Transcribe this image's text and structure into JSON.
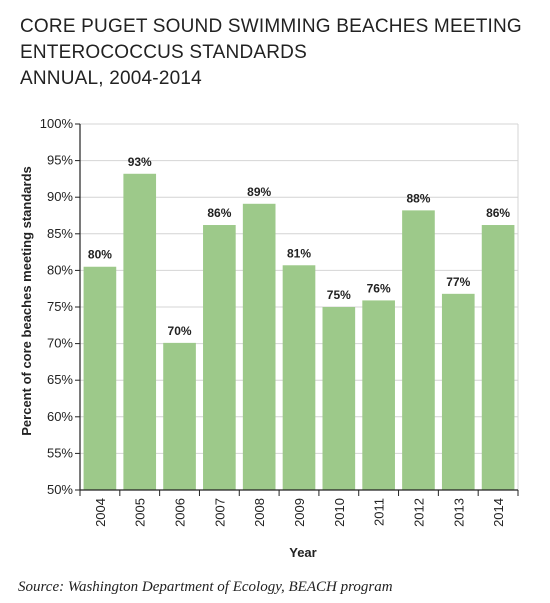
{
  "title_lines": [
    "CORE PUGET SOUND SWIMMING BEACHES MEETING",
    "ENTEROCOCCUS STANDARDS",
    "ANNUAL, 2004-2014"
  ],
  "source": "Source: Washington Department of Ecology, BEACH program",
  "colors": {
    "bar": "#9dc98a",
    "grid": "#d4d4d4",
    "axis": "#222222",
    "text": "#222222"
  },
  "chart_data": {
    "type": "bar",
    "title": "CORE PUGET SOUND SWIMMING BEACHES MEETING ENTEROCOCCUS STANDARDS ANNUAL, 2004-2014",
    "xlabel": "Year",
    "ylabel": "Percent of core beaches meeting standards",
    "categories": [
      "2004",
      "2005",
      "2006",
      "2007",
      "2008",
      "2009",
      "2010",
      "2011",
      "2012",
      "2013",
      "2014"
    ],
    "values": [
      80.5,
      93.2,
      70.1,
      86.2,
      89.1,
      80.7,
      75.0,
      75.9,
      88.2,
      76.8,
      86.2
    ],
    "data_labels": [
      "80%",
      "93%",
      "70%",
      "86%",
      "89%",
      "81%",
      "75%",
      "76%",
      "88%",
      "77%",
      "86%"
    ],
    "ylim": [
      50,
      100
    ],
    "yticks": [
      50,
      55,
      60,
      65,
      70,
      75,
      80,
      85,
      90,
      95,
      100
    ],
    "ytick_labels": [
      "50%",
      "55%",
      "60%",
      "65%",
      "70%",
      "75%",
      "80%",
      "85%",
      "90%",
      "95%",
      "100%"
    ],
    "grid": true,
    "legend": "none"
  }
}
